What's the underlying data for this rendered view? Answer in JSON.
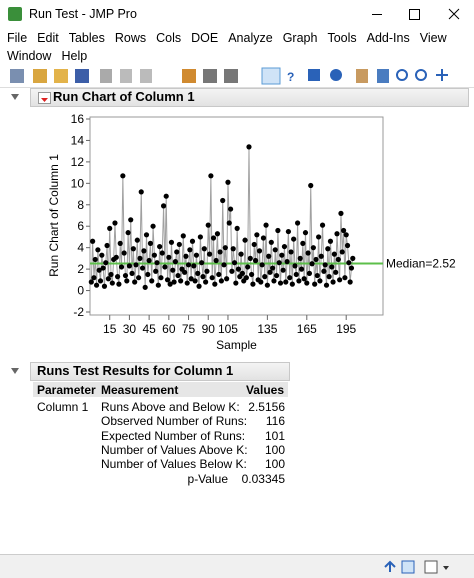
{
  "window": {
    "title": "Run Test - JMP Pro"
  },
  "menu": [
    "File",
    "Edit",
    "Tables",
    "Rows",
    "Cols",
    "DOE",
    "Analyze",
    "Graph",
    "Tools",
    "Add-Ins",
    "View",
    "Window",
    "Help"
  ],
  "chart_data": {
    "type": "line",
    "title": "Run Chart of Column 1",
    "x_label": "Sample",
    "y_label": "Run Chart of Column 1",
    "color": "#000000",
    "line_color": "#a0a0a0",
    "median": 2.52,
    "median_label": "Median=2.52",
    "median_color": "#5cbf4a",
    "xlim": [
      0,
      223
    ],
    "xticks": [
      15,
      30,
      45,
      60,
      75,
      90,
      105,
      135,
      165,
      195
    ],
    "ylim": [
      -2,
      16
    ],
    "yticks": [
      -2,
      0,
      2,
      4,
      6,
      8,
      10,
      12,
      14,
      16
    ],
    "x": [
      1,
      2,
      3,
      4,
      5,
      6,
      7,
      8,
      9,
      10,
      11,
      12,
      13,
      14,
      15,
      16,
      17,
      18,
      19,
      20,
      21,
      22,
      23,
      24,
      25,
      26,
      27,
      28,
      29,
      30,
      31,
      32,
      33,
      34,
      35,
      36,
      37,
      38,
      39,
      40,
      41,
      42,
      43,
      44,
      45,
      46,
      47,
      48,
      49,
      50,
      51,
      52,
      53,
      54,
      55,
      56,
      57,
      58,
      59,
      60,
      61,
      62,
      63,
      64,
      65,
      66,
      67,
      68,
      69,
      70,
      71,
      72,
      73,
      74,
      75,
      76,
      77,
      78,
      79,
      80,
      81,
      82,
      83,
      84,
      85,
      86,
      87,
      88,
      89,
      90,
      91,
      92,
      93,
      94,
      95,
      96,
      97,
      98,
      99,
      100,
      101,
      102,
      103,
      104,
      105,
      106,
      107,
      108,
      109,
      110,
      111,
      112,
      113,
      114,
      115,
      116,
      117,
      118,
      119,
      120,
      121,
      122,
      123,
      124,
      125,
      126,
      127,
      128,
      129,
      130,
      131,
      132,
      133,
      134,
      135,
      136,
      137,
      138,
      139,
      140,
      141,
      142,
      143,
      144,
      145,
      146,
      147,
      148,
      149,
      150,
      151,
      152,
      153,
      154,
      155,
      156,
      157,
      158,
      159,
      160,
      161,
      162,
      163,
      164,
      165,
      166,
      167,
      168,
      169,
      170,
      171,
      172,
      173,
      174,
      175,
      176,
      177,
      178,
      179,
      180,
      181,
      182,
      183,
      184,
      185,
      186,
      187,
      188,
      189,
      190,
      191,
      192,
      193,
      194,
      195,
      196,
      197,
      198,
      199,
      200
    ],
    "values": [
      0.8,
      4.6,
      1.2,
      2.9,
      0.5,
      3.8,
      1.9,
      0.9,
      3.3,
      2.1,
      0.4,
      2.6,
      4.2,
      1.1,
      5.8,
      1.5,
      0.7,
      2.9,
      6.3,
      3.1,
      1.3,
      0.6,
      4.4,
      2.2,
      10.7,
      3.5,
      1.4,
      0.9,
      5.4,
      2.3,
      6.6,
      1.6,
      3.9,
      0.8,
      2.4,
      4.7,
      1.2,
      3.0,
      9.2,
      2.1,
      3.7,
      0.3,
      5.2,
      1.5,
      2.8,
      4.4,
      0.9,
      6.0,
      3.3,
      1.8,
      2.6,
      0.5,
      4.1,
      1.2,
      3.5,
      7.9,
      2.2,
      8.8,
      1.0,
      3.1,
      0.6,
      4.5,
      1.9,
      0.8,
      2.7,
      3.6,
      1.4,
      4.3,
      0.9,
      2.0,
      5.1,
      1.7,
      3.2,
      0.7,
      2.4,
      3.8,
      1.1,
      4.6,
      2.3,
      0.9,
      3.3,
      1.6,
      0.4,
      5.0,
      2.6,
      1.3,
      3.9,
      0.8,
      1.8,
      6.1,
      3.4,
      10.7,
      1.2,
      4.9,
      0.6,
      2.8,
      5.3,
      1.5,
      3.6,
      0.9,
      8.4,
      2.4,
      4.0,
      1.1,
      10.1,
      6.3,
      7.6,
      1.8,
      3.9,
      2.6,
      0.7,
      5.8,
      2.0,
      1.3,
      3.4,
      1.6,
      0.9,
      4.7,
      1.2,
      2.2,
      13.4,
      3.0,
      1.5,
      0.6,
      4.3,
      2.8,
      5.2,
      1.0,
      3.7,
      0.8,
      2.4,
      4.9,
      1.3,
      6.1,
      0.5,
      3.2,
      1.7,
      4.5,
      2.1,
      0.9,
      3.8,
      1.4,
      5.6,
      2.6,
      0.7,
      3.3,
      1.9,
      4.1,
      0.8,
      2.7,
      5.5,
      1.2,
      3.6,
      0.6,
      4.8,
      2.3,
      1.5,
      6.3,
      0.9,
      3.0,
      2.0,
      4.4,
      1.1,
      5.4,
      0.7,
      3.5,
      1.6,
      9.8,
      2.5,
      4.0,
      0.6,
      2.9,
      1.4,
      5.0,
      0.9,
      3.2,
      6.1,
      1.8,
      2.4,
      0.5,
      3.9,
      1.3,
      4.6,
      2.2,
      0.8,
      3.4,
      1.7,
      5.3,
      2.9,
      1.0,
      7.2,
      3.6,
      5.6,
      1.2,
      5.2,
      4.2,
      2.6,
      0.8,
      2.1,
      3.0
    ]
  },
  "results": {
    "title": "Runs Test Results for Column 1",
    "columns": [
      "Parameter",
      "Measurement",
      "Values"
    ],
    "parameter": "Column 1",
    "rows": [
      [
        "Runs Above and Below K:",
        2.5156
      ],
      [
        "Observed Number of Runs:",
        116
      ],
      [
        "Expected Number of Runs:",
        101
      ],
      [
        "Number of Values Above K:",
        100
      ],
      [
        "Number of Values Below K:",
        100
      ],
      [
        "p-Value",
        0.03345
      ]
    ]
  }
}
